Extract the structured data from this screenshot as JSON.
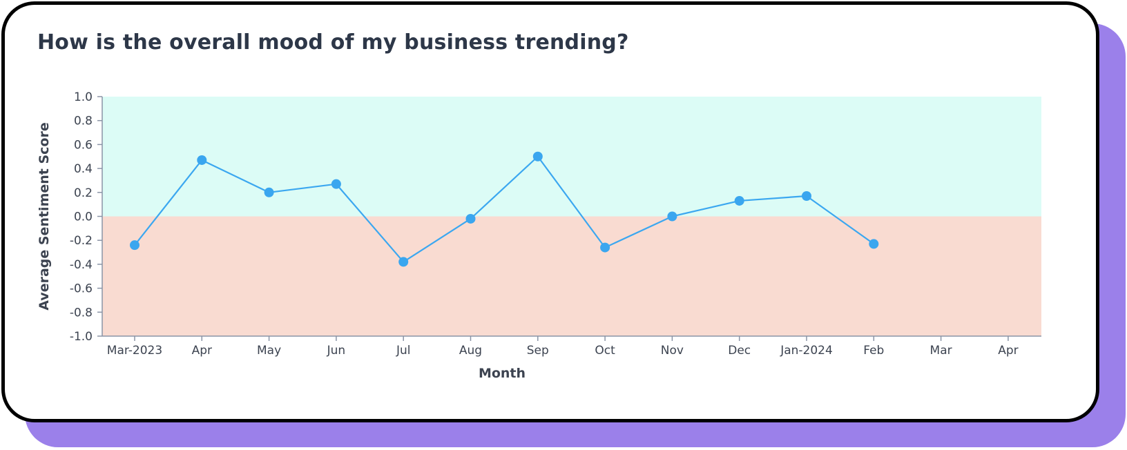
{
  "colors": {
    "accent_shadow": "#9b80ea",
    "positive_zone": "#dcfcf6",
    "negative_zone": "#f9dbd1",
    "series_line": "#3ba7f0",
    "series_point": "#3aa6ef",
    "axis": "#8a94a6",
    "text": "#3c4350"
  },
  "chart_data": {
    "type": "line",
    "title": "How is the overall mood of my business trending?",
    "xlabel": "Month",
    "ylabel": "Average Sentiment Score",
    "ylim": [
      -1.0,
      1.0
    ],
    "yticks": [
      "1.0",
      "0.8",
      "0.6",
      "0.4",
      "0.2",
      "0.0",
      "-0.2",
      "-0.4",
      "-0.6",
      "-0.8",
      "-1.0"
    ],
    "x_ticks": [
      "Mar-2023",
      "Apr",
      "May",
      "Jun",
      "Jul",
      "Aug",
      "Sep",
      "Oct",
      "Nov",
      "Dec",
      "Jan-2024",
      "Feb",
      "Mar",
      "Apr"
    ],
    "background_bands": [
      {
        "from": 0.0,
        "to": 1.0,
        "color": "#dcfcf6"
      },
      {
        "from": -1.0,
        "to": 0.0,
        "color": "#f9dbd1"
      }
    ],
    "grid": false,
    "legend": "none",
    "series": [
      {
        "x": [
          "Mar-2023",
          "Apr",
          "May",
          "Jun",
          "Jul",
          "Aug",
          "Sep",
          "Oct",
          "Nov",
          "Dec",
          "Jan-2024",
          "Feb"
        ],
        "values": [
          -0.24,
          0.47,
          0.2,
          0.27,
          -0.38,
          -0.02,
          0.5,
          -0.26,
          0.0,
          0.13,
          0.17,
          -0.23
        ]
      }
    ]
  }
}
